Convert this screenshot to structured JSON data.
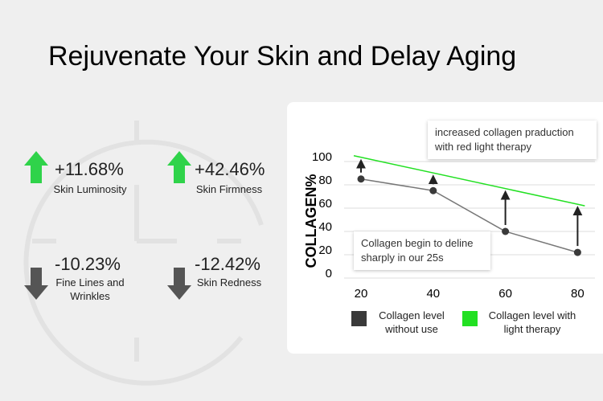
{
  "title": "Rejuvenate Your Skin and Delay Aging",
  "stats": [
    {
      "value": "+11.68%",
      "label": "Skin Luminosity",
      "color": "#2fd34a"
    },
    {
      "value": "+42.46%",
      "label": "Skin Firmness",
      "color": "#2fd34a"
    },
    {
      "value": "-10.23%",
      "label": "Fine Lines and Wrinkles",
      "color": "#555555"
    },
    {
      "value": "-12.42%",
      "label": "Skin Redness",
      "color": "#555555"
    }
  ],
  "chart_data": {
    "type": "line",
    "y_label": "COLLAGEN%",
    "xlim": [
      15,
      85
    ],
    "xticks": [
      20,
      40,
      60,
      80
    ],
    "ylim": [
      0,
      110
    ],
    "yticks": [
      0,
      20,
      40,
      60,
      80,
      100
    ],
    "grid": true,
    "series": [
      {
        "name": "Collagen level without use",
        "color": "#3a3a3a",
        "x": [
          20,
          40,
          60,
          80
        ],
        "values": [
          85,
          75,
          40,
          22
        ]
      },
      {
        "name": "Collagen level with light therapy",
        "color": "#22e022",
        "x": [
          18,
          82
        ],
        "values": [
          105,
          62
        ]
      }
    ],
    "annotations": [
      "increased collagen praduction with red light therapy",
      "Collagen begin to deline sharply in our 25s"
    ]
  }
}
